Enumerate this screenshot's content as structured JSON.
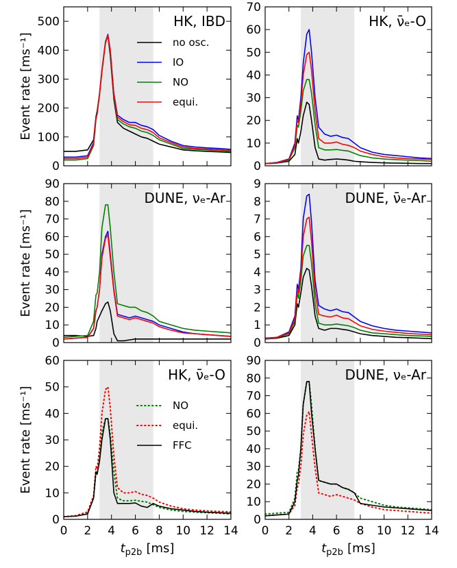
{
  "chart_data": [
    {
      "type": "line",
      "title": "HK, IBD",
      "ylabel": "Event rate [ms⁻¹]",
      "xlim": [
        0,
        14
      ],
      "xticks": [
        0,
        2,
        4,
        6,
        8,
        10,
        12,
        14
      ],
      "ylim": [
        0,
        550
      ],
      "yticks": [
        0,
        100,
        200,
        300,
        400,
        500
      ],
      "shade": [
        3,
        7.5
      ],
      "legend": "right",
      "x": [
        0,
        1,
        2,
        2.5,
        2.7,
        2.8,
        3,
        3.2,
        3.5,
        3.7,
        3.9,
        4.2,
        4.5,
        5,
        5.5,
        6,
        6.5,
        7,
        7.5,
        8,
        9,
        10,
        11,
        12,
        13,
        14
      ],
      "series": [
        {
          "name": "no osc.",
          "color": "#000000",
          "values": [
            50,
            50,
            55,
            90,
            170,
            190,
            250,
            330,
            430,
            450,
            380,
            230,
            150,
            130,
            120,
            110,
            100,
            95,
            85,
            75,
            65,
            55,
            52,
            50,
            48,
            46
          ]
        },
        {
          "name": "IO",
          "color": "#0000ff",
          "values": [
            30,
            30,
            35,
            80,
            170,
            180,
            250,
            330,
            430,
            455,
            400,
            250,
            175,
            160,
            150,
            150,
            140,
            135,
            125,
            105,
            85,
            70,
            65,
            62,
            60,
            57
          ]
        },
        {
          "name": "NO",
          "color": "#008000",
          "values": [
            20,
            20,
            25,
            70,
            160,
            180,
            245,
            325,
            425,
            450,
            390,
            240,
            160,
            145,
            135,
            130,
            120,
            115,
            105,
            90,
            75,
            60,
            57,
            55,
            52,
            50
          ]
        },
        {
          "name": "equi.",
          "color": "#ff0000",
          "values": [
            25,
            25,
            30,
            75,
            165,
            180,
            248,
            328,
            428,
            452,
            395,
            245,
            168,
            153,
            142,
            140,
            130,
            125,
            115,
            97,
            80,
            65,
            60,
            58,
            56,
            53
          ]
        }
      ]
    },
    {
      "type": "line",
      "title": "HK, ν̄ₑ-O",
      "xlim": [
        0,
        14
      ],
      "xticks": [
        0,
        2,
        4,
        6,
        8,
        10,
        12,
        14
      ],
      "ylim": [
        0,
        70
      ],
      "yticks": [
        0,
        10,
        20,
        30,
        40,
        50,
        60,
        70
      ],
      "shade": [
        3,
        7.5
      ],
      "x": [
        0,
        1,
        2,
        2.5,
        2.7,
        2.8,
        3,
        3.2,
        3.5,
        3.7,
        3.9,
        4.2,
        4.5,
        5,
        5.5,
        6,
        6.5,
        7,
        7.5,
        8,
        9,
        10,
        11,
        12,
        13,
        14
      ],
      "series": [
        {
          "color": "#000000",
          "values": [
            1,
            1.2,
            2,
            5,
            12,
            10,
            15,
            22,
            28,
            27,
            20,
            8,
            3,
            2.5,
            2.8,
            3,
            2.8,
            2.5,
            2,
            1.8,
            1.5,
            1.3,
            1.2,
            1.1,
            1,
            1
          ]
        },
        {
          "color": "#0000ff",
          "values": [
            1,
            1.5,
            3,
            10,
            22,
            20,
            30,
            45,
            58,
            60,
            50,
            30,
            17,
            14,
            13,
            13.5,
            12.5,
            12,
            10,
            8,
            6,
            5,
            4.5,
            4,
            3.5,
            3.2
          ]
        },
        {
          "color": "#008000",
          "values": [
            1,
            1.3,
            2.5,
            8,
            18,
            17,
            24,
            33,
            38,
            38,
            32,
            18,
            8,
            7,
            7,
            7.2,
            6.8,
            6.5,
            5.5,
            4.5,
            3.5,
            3,
            2.7,
            2.5,
            2.3,
            2
          ]
        },
        {
          "color": "#ff0000",
          "values": [
            1,
            1.4,
            2.8,
            9,
            20,
            19,
            27,
            40,
            49,
            50,
            42,
            24,
            12,
            10,
            10,
            10.5,
            9.5,
            9,
            8,
            6.5,
            5,
            4,
            3.5,
            3.2,
            3,
            2.8
          ]
        }
      ]
    },
    {
      "type": "line",
      "title": "DUNE, νₑ-Ar",
      "ylabel": "Event rate [ms⁻¹]",
      "xlim": [
        0,
        14
      ],
      "xticks": [
        0,
        2,
        4,
        6,
        8,
        10,
        12,
        14
      ],
      "ylim": [
        0,
        90
      ],
      "yticks": [
        0,
        10,
        20,
        30,
        40,
        50,
        60,
        70,
        80,
        90
      ],
      "shade": [
        3,
        7.5
      ],
      "x": [
        0,
        1,
        2,
        2.5,
        2.7,
        2.8,
        3,
        3.2,
        3.5,
        3.7,
        3.9,
        4.2,
        4.5,
        5,
        5.5,
        6,
        6.5,
        7,
        7.5,
        8,
        9,
        10,
        11,
        12,
        13,
        14
      ],
      "series": [
        {
          "color": "#000000",
          "values": [
            4,
            4,
            3.5,
            4,
            8,
            12,
            15,
            18,
            22,
            23,
            18,
            5,
            1,
            1,
            1.5,
            2,
            2,
            2,
            2,
            2,
            2,
            2,
            2,
            2,
            2,
            2
          ]
        },
        {
          "color": "#0000ff",
          "values": [
            2,
            2.5,
            3,
            8,
            18,
            20,
            30,
            50,
            60,
            63,
            50,
            30,
            16,
            15,
            14,
            15,
            14,
            13,
            12,
            10,
            8,
            6,
            5,
            4.5,
            4,
            3.5
          ]
        },
        {
          "color": "#008000",
          "values": [
            3,
            3.5,
            4,
            12,
            27,
            28,
            40,
            65,
            78,
            78,
            65,
            40,
            22,
            21,
            20,
            20,
            18,
            17,
            15,
            12,
            10,
            8,
            7,
            6.5,
            6,
            5.5
          ]
        },
        {
          "color": "#ff0000",
          "values": [
            2,
            2.5,
            3,
            8,
            18,
            20,
            30,
            48,
            59,
            61,
            48,
            29,
            15,
            14,
            13,
            14,
            13,
            12,
            11,
            9,
            7,
            5.5,
            5,
            4.5,
            4,
            3.5
          ]
        }
      ]
    },
    {
      "type": "line",
      "title": "DUNE, ν̄ₑ-Ar",
      "xlim": [
        0,
        14
      ],
      "xticks": [
        0,
        2,
        4,
        6,
        8,
        10,
        12,
        14
      ],
      "ylim": [
        0,
        9
      ],
      "yticks": [
        0,
        1,
        2,
        3,
        4,
        5,
        6,
        7,
        8,
        9
      ],
      "shade": [
        3,
        7.5
      ],
      "x": [
        0,
        1,
        2,
        2.5,
        2.7,
        2.8,
        3,
        3.2,
        3.5,
        3.7,
        3.9,
        4.2,
        4.5,
        5,
        5.5,
        6,
        6.5,
        7,
        7.5,
        8,
        9,
        10,
        11,
        12,
        13,
        14
      ],
      "series": [
        {
          "color": "#000000",
          "values": [
            0.2,
            0.25,
            0.4,
            1,
            2.2,
            2,
            2.8,
            3.7,
            4.2,
            4.1,
            3.2,
            1.5,
            0.8,
            0.7,
            0.8,
            0.8,
            0.75,
            0.7,
            0.6,
            0.5,
            0.4,
            0.35,
            0.3,
            0.28,
            0.25,
            0.22
          ]
        },
        {
          "color": "#0000ff",
          "values": [
            0.25,
            0.3,
            0.6,
            1.5,
            3.3,
            3,
            4.2,
            7,
            8.3,
            8.4,
            6.8,
            3.5,
            2.1,
            1.9,
            1.8,
            1.9,
            1.75,
            1.7,
            1.45,
            1.2,
            0.95,
            0.8,
            0.7,
            0.65,
            0.6,
            0.55
          ]
        },
        {
          "color": "#008000",
          "values": [
            0.2,
            0.28,
            0.5,
            1.2,
            2.8,
            2.5,
            3.5,
            4.9,
            5.5,
            5.5,
            4.5,
            2.2,
            1.1,
            1,
            1,
            1.05,
            1,
            0.95,
            0.85,
            0.7,
            0.55,
            0.5,
            0.45,
            0.4,
            0.38,
            0.35
          ]
        },
        {
          "color": "#ff0000",
          "values": [
            0.22,
            0.3,
            0.55,
            1.35,
            3,
            2.8,
            3.9,
            6,
            7,
            7.1,
            5.7,
            2.9,
            1.6,
            1.5,
            1.45,
            1.55,
            1.4,
            1.35,
            1.15,
            0.95,
            0.75,
            0.65,
            0.58,
            0.52,
            0.48,
            0.45
          ]
        }
      ]
    },
    {
      "type": "line",
      "title": "HK, ν̄ₑ-O",
      "ylabel": "Event rate [ms⁻¹]",
      "xlabel": {
        "symbol": "t",
        "subscript": "p2b",
        "unit": "[ms]"
      },
      "xlim": [
        0,
        14
      ],
      "xticks": [
        0,
        2,
        4,
        6,
        8,
        10,
        12,
        14
      ],
      "ylim": [
        0,
        60
      ],
      "yticks": [
        0,
        10,
        20,
        30,
        40,
        50,
        60
      ],
      "shade": [
        3,
        7.5
      ],
      "legend": "right",
      "x": [
        0,
        1,
        2,
        2.5,
        2.7,
        2.8,
        3,
        3.2,
        3.5,
        3.7,
        3.9,
        4.2,
        4.5,
        5,
        5.5,
        6,
        6.5,
        7,
        7.5,
        8,
        9,
        10,
        11,
        12,
        13,
        14
      ],
      "series": [
        {
          "name": "NO",
          "color": "#008000",
          "linestyle": "dotted",
          "values": [
            1,
            1.3,
            2.5,
            8,
            18,
            17,
            24,
            33,
            38,
            38,
            32,
            18,
            8,
            7,
            7,
            7.2,
            6.8,
            6.5,
            5.5,
            4.5,
            3.5,
            3,
            2.7,
            2.5,
            2.3,
            2
          ]
        },
        {
          "name": "equi.",
          "color": "#ff0000",
          "linestyle": "dotted",
          "values": [
            1,
            1.4,
            2.8,
            9,
            20,
            19,
            27,
            40,
            49,
            50,
            42,
            24,
            12,
            10,
            10,
            10.5,
            9.5,
            9,
            8,
            6.5,
            5,
            4,
            3.5,
            3.2,
            3,
            2.8
          ]
        },
        {
          "name": "FFC",
          "color": "#000000",
          "values": [
            1,
            1.2,
            2,
            8,
            18,
            17,
            22,
            30,
            38,
            38,
            30,
            10,
            6,
            6,
            6,
            6.2,
            5,
            4.5,
            6,
            5,
            4,
            3.5,
            3,
            2.7,
            2.5,
            2.3
          ]
        }
      ]
    },
    {
      "type": "line",
      "title": "DUNE, νₑ-Ar",
      "xlabel": {
        "symbol": "t",
        "subscript": "p2b",
        "unit": "[ms]"
      },
      "xlim": [
        0,
        14
      ],
      "xticks": [
        0,
        2,
        4,
        6,
        8,
        10,
        12,
        14
      ],
      "ylim": [
        0,
        90
      ],
      "yticks": [
        0,
        10,
        20,
        30,
        40,
        50,
        60,
        70,
        80,
        90
      ],
      "shade": [
        3,
        7.5
      ],
      "x": [
        0,
        1,
        2,
        2.5,
        2.7,
        2.8,
        3,
        3.2,
        3.5,
        3.7,
        3.9,
        4.2,
        4.5,
        5,
        5.5,
        6,
        6.5,
        7,
        7.5,
        8,
        9,
        10,
        11,
        12,
        13,
        14
      ],
      "series": [
        {
          "color": "#008000",
          "linestyle": "dotted",
          "values": [
            3,
            3.5,
            4,
            12,
            27,
            28,
            40,
            65,
            78,
            78,
            65,
            40,
            22,
            21,
            20,
            20,
            18,
            17,
            15,
            12,
            10,
            8,
            7,
            6.5,
            6,
            5.5
          ]
        },
        {
          "color": "#ff0000",
          "linestyle": "dotted",
          "values": [
            2,
            2.5,
            3,
            8,
            18,
            20,
            30,
            48,
            59,
            61,
            48,
            29,
            15,
            14,
            13,
            14,
            13,
            12,
            11,
            9,
            7,
            5.5,
            5,
            4.5,
            4,
            3.5
          ]
        },
        {
          "color": "#000000",
          "values": [
            2,
            2.5,
            3,
            10,
            22,
            25,
            40,
            65,
            78,
            78,
            60,
            40,
            22,
            21,
            20,
            20,
            18,
            17,
            15,
            9,
            8,
            7,
            6.5,
            6,
            5.5,
            5
          ]
        }
      ]
    }
  ]
}
